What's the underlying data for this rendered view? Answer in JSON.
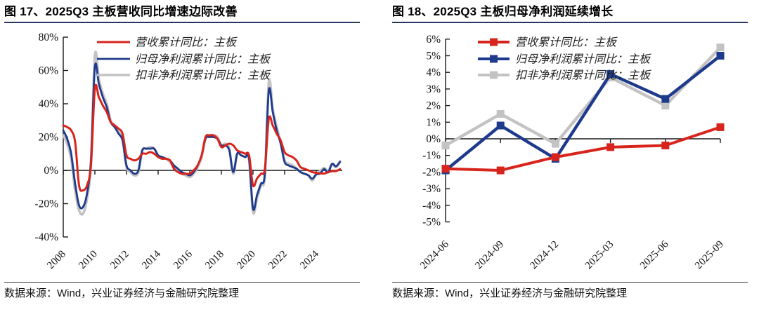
{
  "figures": [
    {
      "title": "图 17、2025Q3 主板营收同比增速边际改善",
      "source": "数据来源：Wind，兴业证券经济与金融研究院整理"
    },
    {
      "title": "图 18、2025Q3 主板归母净利润延续增长",
      "source": "数据来源：Wind，兴业证券经济与金融研究院整理"
    }
  ],
  "colors": {
    "revenue": "#d7251d",
    "net_profit": "#1e3a8c",
    "net_profit_ex": "#c3c3c3",
    "axis": "#1a1a1a",
    "title_rule": "#26375d",
    "source_rule": "#3a3a3a"
  },
  "chart_data": [
    {
      "type": "line",
      "title": "图 17、2025Q3 主板营收同比增速边际改善",
      "x_frequency": "quarterly",
      "x_range": [
        "2008Q1",
        "2025Q3"
      ],
      "x_tick_labels": [
        "2008",
        "2010",
        "2012",
        "2014",
        "2016",
        "2018",
        "2020",
        "2022",
        "2024"
      ],
      "ylim": [
        -40,
        80
      ],
      "y_tick_step": 20,
      "y_tick_suffix": "%",
      "grid": false,
      "legend_position": "top-inside",
      "series": [
        {
          "key": "revenue",
          "name": "营收累计同比：主板",
          "color": "#d7251d",
          "values": [
            27,
            26,
            24,
            17,
            -9,
            -12,
            -9,
            3,
            49,
            44,
            39,
            35,
            29,
            27,
            25,
            22,
            9,
            7,
            6,
            7,
            10,
            10,
            11,
            10,
            8,
            7,
            7,
            6,
            1,
            -1,
            -2,
            -2,
            -2,
            0,
            3,
            9,
            20,
            21,
            21,
            19,
            14,
            15,
            16,
            15,
            12,
            11,
            10,
            9,
            -9,
            -5,
            -2,
            1,
            31,
            27,
            22,
            18,
            11,
            9,
            8,
            6,
            2,
            1,
            0,
            -1,
            -1.5,
            -1.8,
            -1.9,
            -1.1,
            -0.5,
            -0.4,
            0.7
          ]
        },
        {
          "key": "net_profit",
          "name": "归母净利润累计同比：主板",
          "color": "#1e3a8c",
          "values": [
            24,
            19,
            10,
            -8,
            -21,
            -22,
            -14,
            6,
            62,
            52,
            44,
            38,
            29,
            26,
            22,
            18,
            3,
            0,
            -2,
            0,
            12,
            13,
            13,
            13,
            9,
            8,
            7,
            6,
            3,
            1,
            -1,
            -2,
            -3,
            -1,
            3,
            9,
            19,
            20,
            20,
            19,
            15,
            15,
            12,
            -1,
            10,
            9,
            8,
            7,
            -23,
            -15,
            -8,
            -2,
            48,
            35,
            24,
            16,
            5,
            3,
            2,
            1,
            -1,
            -2,
            -3,
            -5,
            -2.5,
            -1.9,
            0.8,
            -1.2,
            3.9,
            2.4,
            5.0
          ]
        },
        {
          "key": "net_profit_ex",
          "name": "扣非净利润累计同比：主板",
          "color": "#c3c3c3",
          "values": [
            21,
            16,
            7,
            -12,
            -24,
            -26,
            -17,
            4,
            69,
            55,
            46,
            40,
            30,
            27,
            23,
            19,
            2,
            -1,
            -3,
            -1,
            12,
            13,
            14,
            13,
            9,
            8,
            7,
            5,
            2,
            0,
            -2,
            -3,
            -4,
            -2,
            2,
            8,
            20,
            21,
            21,
            20,
            15,
            16,
            13,
            -2,
            10,
            9,
            8,
            6,
            -25,
            -17,
            -9,
            -3,
            53,
            37,
            26,
            17,
            6,
            4,
            3,
            1,
            -1,
            -2,
            -3,
            -6,
            -2,
            -0.4,
            1.5,
            -0.3,
            3.7,
            2.0,
            5.5
          ]
        }
      ]
    },
    {
      "type": "line",
      "marker": "square",
      "title": "图 18、2025Q3 主板归母净利润延续增长",
      "categories": [
        "2024-06",
        "2024-09",
        "2024-12",
        "2025-03",
        "2025-06",
        "2025-09"
      ],
      "ylim": [
        -5,
        6
      ],
      "y_tick_step": 1,
      "y_tick_suffix": "%",
      "grid": false,
      "legend_position": "top-inside",
      "series": [
        {
          "key": "revenue",
          "name": "营收累计同比：主板",
          "color": "#d7251d",
          "values": [
            -1.8,
            -1.9,
            -1.1,
            -0.5,
            -0.4,
            0.7
          ]
        },
        {
          "key": "net_profit",
          "name": "归母净利润累计同比：主板",
          "color": "#1e3a8c",
          "values": [
            -1.9,
            0.8,
            -1.2,
            3.9,
            2.4,
            5.0
          ]
        },
        {
          "key": "net_profit_ex",
          "name": "扣非净利润累计同比：主板",
          "color": "#c3c3c3",
          "values": [
            -0.4,
            1.5,
            -0.3,
            3.7,
            2.0,
            5.5
          ]
        }
      ]
    }
  ]
}
